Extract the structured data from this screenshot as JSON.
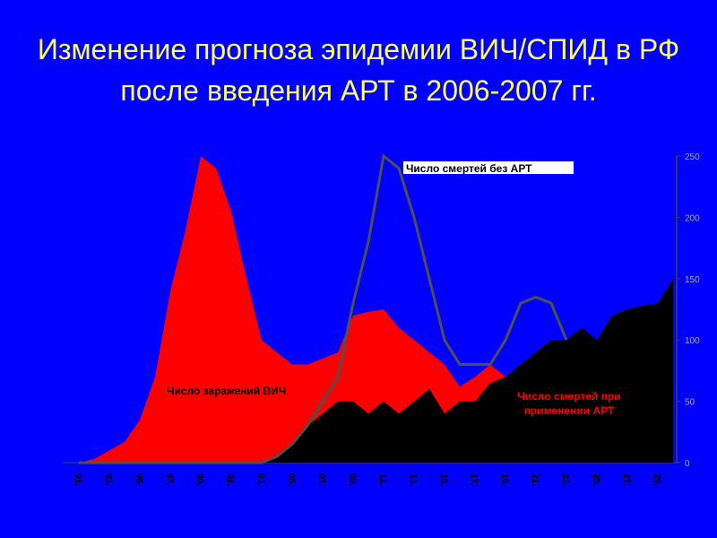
{
  "chart_data": {
    "type": "area",
    "title": "Изменение прогноза эпидемии ВИЧ/СПИД в РФ после введения АРТ в 2006-2007 гг.",
    "categories": [
      "91.",
      null,
      "93.",
      null,
      "95.",
      null,
      "97.",
      null,
      "99.",
      null,
      "01.",
      null,
      "03.",
      null,
      "05.",
      null,
      "07.",
      null,
      "09.",
      null,
      "11.",
      null,
      "13.",
      null,
      "15.",
      null,
      "17.",
      null,
      "19.",
      null,
      "21.",
      null,
      "23.",
      null,
      "25.",
      null,
      "27.",
      null,
      "29.",
      null
    ],
    "series": [
      {
        "name": "Число заражений ВИЧ",
        "color": "#ff0000",
        "style": "area",
        "values": [
          0,
          3,
          10,
          17,
          35,
          70,
          140,
          190,
          250,
          240,
          205,
          150,
          100,
          90,
          80,
          80,
          85,
          90,
          120,
          123,
          125,
          110,
          100,
          90,
          80,
          62,
          70,
          80,
          70,
          80,
          90,
          100,
          null,
          null,
          null,
          null,
          null,
          null,
          null,
          null
        ]
      },
      {
        "name": "Число смертей при применении АРТ",
        "color": "#000000",
        "style": "area",
        "values": [
          0,
          0,
          0,
          0,
          0,
          0,
          0,
          0,
          0,
          0,
          0,
          0,
          0,
          5,
          15,
          30,
          40,
          50,
          50,
          40,
          50,
          40,
          50,
          60,
          40,
          50,
          50,
          65,
          70,
          80,
          90,
          100,
          100,
          110,
          100,
          120,
          125,
          128,
          130,
          150
        ]
      },
      {
        "name": "Число смертей без АРТ",
        "color": "#505050",
        "style": "line",
        "values": [
          0,
          0,
          0,
          0,
          0,
          0,
          0,
          0,
          0,
          0,
          0,
          0,
          0,
          5,
          15,
          30,
          50,
          70,
          130,
          180,
          250,
          240,
          200,
          150,
          100,
          80,
          80,
          80,
          100,
          130,
          135,
          130,
          100,
          null,
          null,
          null,
          null,
          null,
          null,
          null
        ]
      }
    ],
    "ylim": [
      0,
      250
    ],
    "yticks": [
      0,
      50,
      100,
      150,
      200,
      250
    ]
  }
}
